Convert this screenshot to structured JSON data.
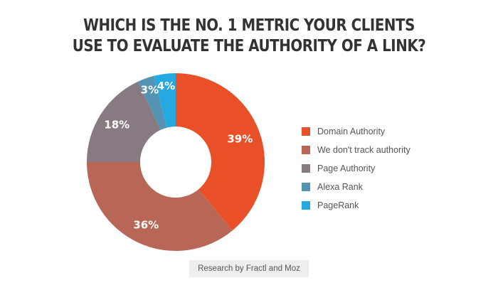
{
  "title": {
    "line1": "WHICH IS THE NO. 1 METRIC YOUR CLIENTS",
    "line2": "USE TO EVALUATE THE AUTHORITY OF A LINK?"
  },
  "chart_data": {
    "type": "pie",
    "subtype": "donut",
    "title": "WHICH IS THE NO. 1 METRIC YOUR CLIENTS USE TO EVALUATE THE AUTHORITY OF A LINK?",
    "categories": [
      "Domain Authority",
      "We don't track authority",
      "Page Authority",
      "Alexa Rank",
      "PageRank"
    ],
    "values": [
      39,
      36,
      18,
      3,
      4
    ],
    "labels": [
      "39%",
      "36%",
      "18%",
      "3%",
      "4%"
    ],
    "colors": [
      "#ea5028",
      "#b86656",
      "#877a83",
      "#5493b2",
      "#26a9e0"
    ],
    "legend_position": "right",
    "start_angle": "12 o'clock, clockwise"
  },
  "legend": {
    "items": [
      {
        "label": "Domain Authority",
        "color": "#ea5028"
      },
      {
        "label": "We don't track authority",
        "color": "#b86656"
      },
      {
        "label": "Page Authority",
        "color": "#877a83"
      },
      {
        "label": "Alexa Rank",
        "color": "#5493b2"
      },
      {
        "label": "PageRank",
        "color": "#26a9e0"
      }
    ]
  },
  "source": "Research by Fractl and Moz"
}
